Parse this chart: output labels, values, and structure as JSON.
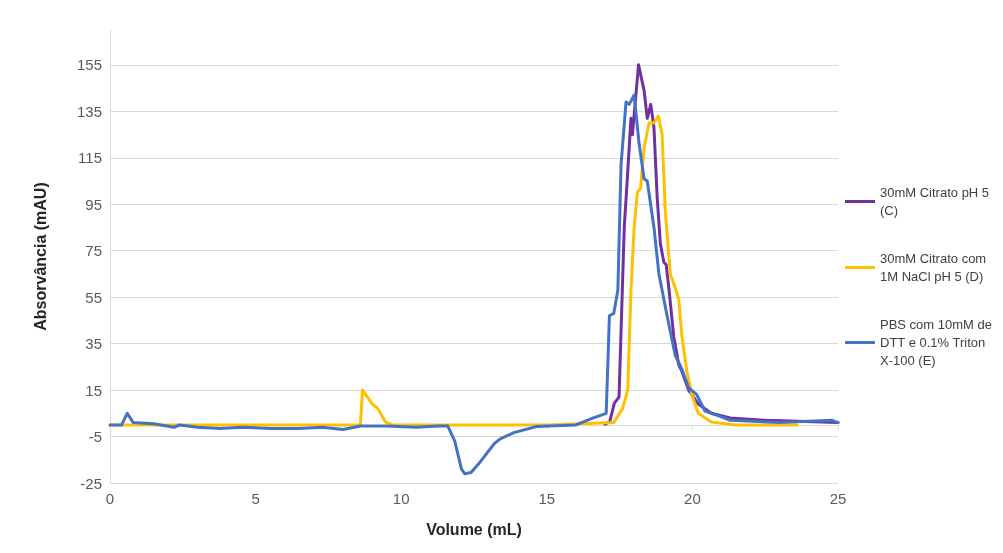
{
  "chart_data": {
    "type": "line",
    "xlabel": "Volume (mL)",
    "ylabel": "Absorvância (mAU)",
    "xlim": [
      0,
      25
    ],
    "xticks": [
      0,
      5,
      10,
      15,
      20,
      25
    ],
    "ylim": [
      -25,
      170
    ],
    "yticks": [
      -25,
      -5,
      15,
      35,
      55,
      75,
      95,
      115,
      135,
      155
    ],
    "grid": "y",
    "legend": "right",
    "marker": "none",
    "line_style": "solid",
    "series": [
      {
        "name": "30mM Citrato pH 5 (C)",
        "color": "#7030a0",
        "x": [
          17.0,
          17.16,
          17.32,
          17.48,
          17.66,
          17.78,
          17.89,
          17.94,
          18.06,
          18.15,
          18.34,
          18.45,
          18.57,
          18.68,
          18.79,
          18.9,
          19.02,
          19.1,
          19.19,
          19.36,
          19.53,
          19.64,
          19.87,
          20.2,
          20.65,
          21.3,
          22.5,
          25
        ],
        "values": [
          0.3,
          1.3,
          9.4,
          12,
          85,
          109,
          132,
          125,
          142,
          155,
          144,
          132,
          138,
          128,
          98,
          78,
          70,
          69,
          59,
          38,
          26,
          23,
          15,
          9,
          5,
          3,
          2,
          1
        ]
      },
      {
        "name": "30mM Citrato com 1M NaCl pH 5 (D)",
        "color": "#ffc000",
        "x": [
          0,
          4,
          8.6,
          8.67,
          9.01,
          9.2,
          9.46,
          9.7,
          12,
          15,
          17.3,
          17.6,
          17.78,
          17.89,
          18.0,
          18.11,
          18.22,
          18.34,
          18.51,
          18.68,
          18.83,
          18.96,
          19.07,
          19.24,
          19.41,
          19.53,
          19.64,
          19.81,
          19.98,
          20.2,
          20.65,
          21.5,
          23.6
        ],
        "values": [
          0,
          0,
          0,
          15,
          9,
          7,
          1.3,
          0,
          0,
          0,
          1,
          7,
          15,
          58,
          85,
          100,
          102,
          119,
          130,
          130,
          133,
          125,
          92,
          65,
          59,
          54,
          38,
          23,
          13,
          5,
          1.3,
          0,
          0
        ]
      },
      {
        "name": "PBS com 10mM de DTT e 0.1% Triton X-100 (E)",
        "color": "#4472c4",
        "x": [
          0,
          0.4,
          0.59,
          0.8,
          1.5,
          2.2,
          2.4,
          3,
          3.8,
          4.5,
          5.5,
          6.5,
          7.3,
          8.0,
          8.6,
          9.5,
          10.5,
          11.3,
          11.6,
          11.84,
          12.07,
          12.18,
          12.4,
          12.74,
          13.2,
          13.4,
          13.87,
          14.65,
          16.0,
          16.6,
          17.04,
          17.15,
          17.3,
          17.44,
          17.55,
          17.72,
          17.83,
          18.0,
          18.17,
          18.34,
          18.45,
          18.68,
          18.85,
          18.96,
          19.13,
          19.41,
          19.64,
          19.87,
          20.15,
          20.43,
          20.88,
          21.3,
          23,
          24.8,
          25
        ],
        "values": [
          0,
          0,
          5,
          1,
          0.5,
          -1,
          0,
          -1,
          -1.5,
          -1,
          -1.5,
          -1.5,
          -1,
          -2,
          -0.5,
          -0.5,
          -1,
          -0.5,
          -0.5,
          -7,
          -19,
          -21,
          -20.5,
          -15.5,
          -8,
          -6,
          -3.3,
          -0.7,
          0,
          3,
          5,
          47,
          48,
          58,
          112,
          139,
          138,
          142,
          121,
          106,
          105,
          85,
          65,
          58,
          47,
          30,
          24,
          16,
          13,
          6,
          4,
          2,
          1,
          2,
          1
        ]
      }
    ]
  }
}
